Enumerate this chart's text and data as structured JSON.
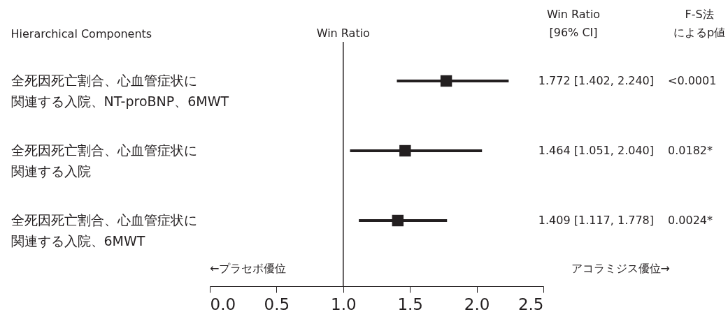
{
  "chart_data": {
    "type": "scatter",
    "orientation": "horizontal",
    "marker": "square",
    "ylabel": "Hierarchical Components",
    "categories": [
      "全死因死亡割合、心血管症状に関連する入院、NT-proBNP、6MWT",
      "全死因死亡割合、心血管症状に関連する入院",
      "全死因死亡割合、心血管症状に関連する入院、6MWT"
    ],
    "series": [
      {
        "color": "#231f20",
        "values": [
          1.772,
          1.464,
          1.409
        ],
        "errors": [
          [
            1.402,
            2.24
          ],
          [
            1.051,
            2.04
          ],
          [
            1.117,
            1.778
          ]
        ],
        "value_labels": [
          "1.772 [1.402, 2.240]",
          "1.464 [1.051, 2.040]",
          "1.409 [1.117, 1.778]"
        ]
      }
    ],
    "xlim": [
      0,
      2.5
    ],
    "xticks": [
      {
        "value": 0,
        "label": "0.0"
      },
      {
        "value": 0.5,
        "label": "0.5"
      },
      {
        "value": 1,
        "label": "1.0"
      },
      {
        "value": 1.5,
        "label": "1.5"
      },
      {
        "value": 2,
        "label": "2.0"
      },
      {
        "value": 2.5,
        "label": "2.5"
      }
    ],
    "ref_lines": [
      {
        "axis": "x",
        "value": 1,
        "label": "Win Ratio"
      }
    ],
    "annotations": [
      "Win Ratio [96% CI]",
      "F-S法によるp値",
      "←プラセボ優位",
      "アコラミジス優位→",
      "<0.0001",
      "0.0182*",
      "0.0024*"
    ]
  }
}
